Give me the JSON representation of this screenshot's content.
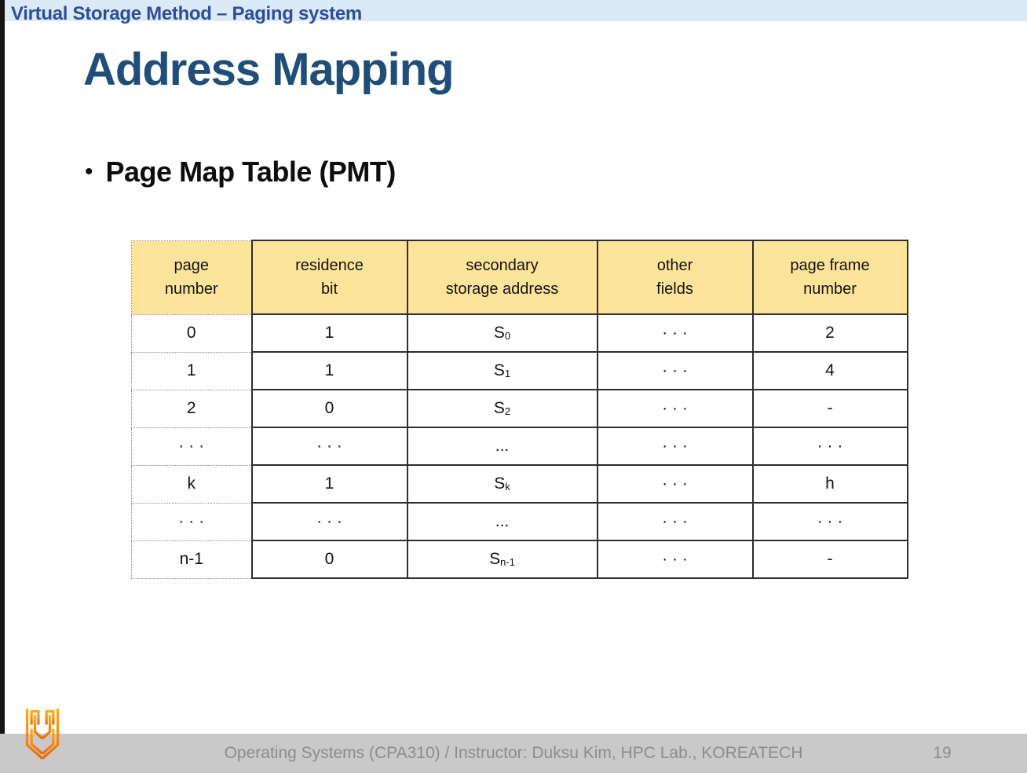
{
  "slide_header": "Virtual Storage Method – Paging system",
  "title": "Address Mapping",
  "bullet": {
    "marker": "•",
    "text": "Page Map Table (PMT)"
  },
  "table": {
    "columns": [
      "page\nnumber",
      "residence\nbit",
      "secondary\nstorage address",
      "other\nfields",
      "page frame\nnumber"
    ],
    "rows": [
      [
        "0",
        "1",
        {
          "base": "S",
          "sub": "0"
        },
        "· · ·",
        "2"
      ],
      [
        "1",
        "1",
        {
          "base": "S",
          "sub": "1"
        },
        "· · ·",
        "4"
      ],
      [
        "2",
        "0",
        {
          "base": "S",
          "sub": "2"
        },
        "· · ·",
        "-"
      ],
      [
        "· · ·",
        "· · ·",
        "...",
        "· · ·",
        "· · ·"
      ],
      [
        "k",
        "1",
        {
          "base": "S",
          "sub": "k"
        },
        "· · ·",
        "h"
      ],
      [
        "· · ·",
        "· · ·",
        "...",
        "· · ·",
        "· · ·"
      ],
      [
        "n-1",
        "0",
        {
          "base": "S",
          "sub": "n-1"
        },
        "· · ·",
        "-"
      ]
    ]
  },
  "footer": {
    "course_info": "Operating Systems (CPA310) / Instructor: Duksu Kim, HPC Lab., KOREATECH",
    "page_number": "19"
  },
  "icons": {
    "logo": "koreatech-logo"
  },
  "colors": {
    "title_blue": "#1F4E79",
    "header_blue": "#2B4F9C",
    "band_blue": "#DCE9F6",
    "table_header_bg": "#FDE49B",
    "footer_bg": "#C9C9C9",
    "footer_text": "#8C8C8C",
    "logo_orange_top": "#FBAE17",
    "logo_orange_bottom": "#EF6A00"
  }
}
